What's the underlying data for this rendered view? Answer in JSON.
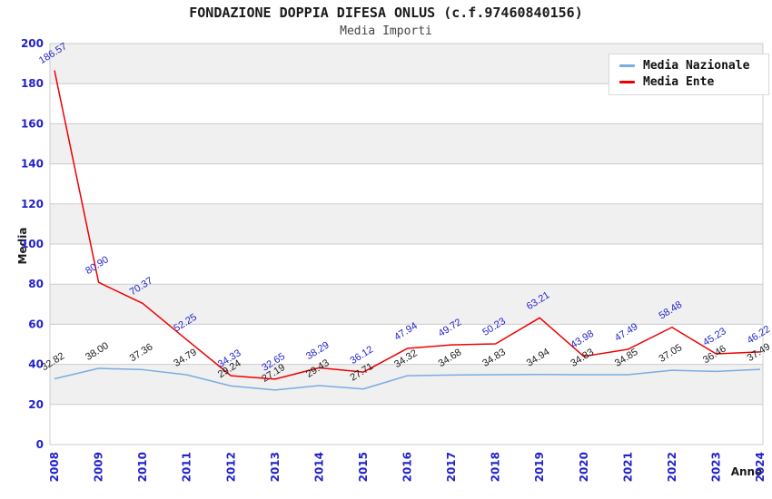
{
  "header": {
    "title": "FONDAZIONE DOPPIA DIFESA ONLUS (c.f.97460840156)",
    "subtitle": "Media Importi"
  },
  "chart_data": {
    "type": "line",
    "title": "FONDAZIONE DOPPIA DIFESA ONLUS (c.f.97460840156)",
    "subtitle": "Media Importi",
    "xlabel": "Anno",
    "ylabel": "Media",
    "ylim": [
      0,
      200
    ],
    "yticks": [
      0,
      20,
      40,
      60,
      80,
      100,
      120,
      140,
      160,
      180,
      200
    ],
    "grid": true,
    "legend_position": "top-right",
    "categories": [
      "2008",
      "2009",
      "2010",
      "2011",
      "2012",
      "2013",
      "2014",
      "2015",
      "2016",
      "2017",
      "2018",
      "2019",
      "2020",
      "2021",
      "2022",
      "2023",
      "2024"
    ],
    "series": [
      {
        "name": "Media Nazionale",
        "color": "#78ade0",
        "label_color": "#1a1a1a",
        "values": [
          32.82,
          38.0,
          37.36,
          34.79,
          29.24,
          27.19,
          29.43,
          27.71,
          34.32,
          34.68,
          34.83,
          34.94,
          34.83,
          34.85,
          37.05,
          36.46,
          37.49
        ]
      },
      {
        "name": "Media Ente",
        "color": "#ee0000",
        "label_color": "#2222cc",
        "values": [
          186.57,
          80.9,
          70.37,
          52.25,
          34.33,
          32.65,
          38.29,
          36.12,
          47.94,
          49.72,
          50.23,
          63.21,
          43.98,
          47.49,
          58.48,
          45.23,
          46.22
        ]
      }
    ],
    "colors": {
      "tick_label": "#2222cc",
      "grid_line": "#cccccc",
      "plot_border": "#cccccc",
      "band_fill": "#f0f0f0",
      "background": "#ffffff"
    }
  }
}
